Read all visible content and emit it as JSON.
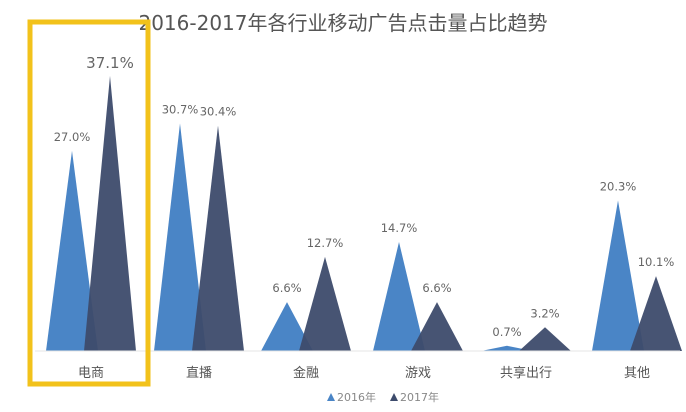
{
  "chart_data": {
    "type": "bar",
    "mark_shape": "triangle",
    "title": "2016-2017年各行业移动广告点击量占比趋势",
    "categories": [
      "电商",
      "直播",
      "金融",
      "游戏",
      "共享出行",
      "其他"
    ],
    "series": [
      {
        "name": "2016年",
        "color": "#4a85c6",
        "values": [
          27.0,
          30.7,
          6.6,
          14.7,
          0.7,
          20.3
        ],
        "labels": [
          "27.0%",
          "30.7%",
          "6.6%",
          "14.7%",
          "0.7%",
          "20.3%"
        ]
      },
      {
        "name": "2017年",
        "color": "#3d4b6c",
        "values": [
          37.1,
          30.4,
          12.7,
          6.6,
          3.2,
          10.1
        ],
        "labels": [
          "37.1%",
          "30.4%",
          "12.7%",
          "6.6%",
          "3.2%",
          "10.1%"
        ]
      }
    ],
    "unit": "%",
    "ylim": [
      0,
      37.1
    ],
    "grid": false,
    "legend": "bottom-center",
    "highlight": {
      "category": "电商",
      "color": "#f2c21b"
    }
  }
}
